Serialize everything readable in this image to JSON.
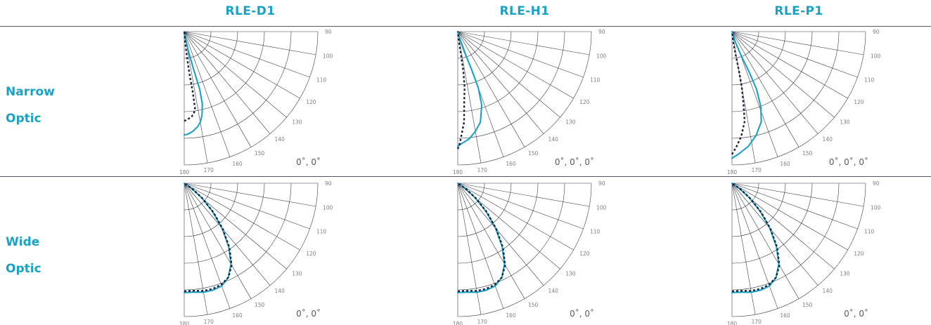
{
  "columns": [
    "RLE-D1",
    "RLE-H1",
    "RLE-P1"
  ],
  "rows": [
    {
      "line1": "Narrow",
      "line2": "Optic"
    },
    {
      "line1": "Wide",
      "line2": "Optic"
    }
  ],
  "colors": {
    "accent": "#1aa1c6",
    "dashed": "#1a1f3a",
    "grid": "#3a3d48"
  },
  "chart_data": [
    {
      "type": "polar",
      "row": "Narrow Optic",
      "column": "RLE-D1",
      "angle_labels": [
        "90",
        "100",
        "110",
        "120",
        "130",
        "140",
        "150",
        "160",
        "170",
        "180"
      ],
      "view_label": "0˚, 0˚",
      "series": [
        {
          "style": "solid",
          "points": [
            [
              180,
              0.775
            ],
            [
              178,
              0.77
            ],
            [
              175,
              0.75
            ],
            [
              172,
              0.72
            ],
            [
              170,
              0.69
            ],
            [
              168,
              0.64
            ],
            [
              166,
              0.56
            ],
            [
              165,
              0.45
            ],
            [
              166,
              0.3
            ],
            [
              168,
              0.15
            ],
            [
              170,
              0.05
            ],
            [
              172,
              0
            ]
          ]
        },
        {
          "style": "dashed",
          "points": [
            [
              180,
              0.67
            ],
            [
              178,
              0.66
            ],
            [
              175,
              0.64
            ],
            [
              173,
              0.61
            ],
            [
              172,
              0.58
            ],
            [
              172,
              0.45
            ],
            [
              173,
              0.32
            ],
            [
              174,
              0.18
            ],
            [
              175,
              0.08
            ],
            [
              176,
              0
            ]
          ]
        }
      ]
    },
    {
      "type": "polar",
      "row": "Narrow Optic",
      "column": "RLE-H1",
      "angle_labels": [
        "90",
        "100",
        "110",
        "120",
        "130",
        "140",
        "150",
        "160",
        "170",
        "180"
      ],
      "view_label": "0˚, 0˚, 0˚",
      "series": [
        {
          "style": "solid",
          "points": [
            [
              180,
              0.86
            ],
            [
              178,
              0.84
            ],
            [
              174,
              0.81
            ],
            [
              170,
              0.76
            ],
            [
              166,
              0.7
            ],
            [
              162,
              0.58
            ],
            [
              160,
              0.45
            ],
            [
              160,
              0.3
            ],
            [
              162,
              0.15
            ],
            [
              165,
              0.05
            ],
            [
              168,
              0
            ]
          ]
        },
        {
          "style": "dashed",
          "points": [
            [
              180,
              0.88
            ],
            [
              179,
              0.84
            ],
            [
              178,
              0.78
            ],
            [
              176,
              0.68
            ],
            [
              175,
              0.55
            ],
            [
              173,
              0.42
            ],
            [
              172,
              0.3
            ],
            [
              172,
              0.18
            ],
            [
              173,
              0.08
            ],
            [
              175,
              0
            ]
          ]
        }
      ]
    },
    {
      "type": "polar",
      "row": "Narrow Optic",
      "column": "RLE-P1",
      "angle_labels": [
        "90",
        "100",
        "110",
        "120",
        "130",
        "140",
        "150",
        "160",
        "170",
        "180"
      ],
      "view_label": "0˚, 0˚, 0˚",
      "series": [
        {
          "style": "solid",
          "points": [
            [
              180,
              0.95
            ],
            [
              177,
              0.92
            ],
            [
              172,
              0.87
            ],
            [
              167,
              0.8
            ],
            [
              162,
              0.71
            ],
            [
              159,
              0.6
            ],
            [
              157,
              0.47
            ],
            [
              157,
              0.33
            ],
            [
              159,
              0.2
            ],
            [
              162,
              0.09
            ],
            [
              166,
              0
            ]
          ]
        },
        {
          "style": "dashed",
          "points": [
            [
              180,
              0.92
            ],
            [
              178,
              0.87
            ],
            [
              175,
              0.79
            ],
            [
              172,
              0.68
            ],
            [
              171,
              0.55
            ],
            [
              170,
              0.42
            ],
            [
              170,
              0.3
            ],
            [
              171,
              0.18
            ],
            [
              173,
              0.08
            ],
            [
              175,
              0
            ]
          ]
        }
      ]
    },
    {
      "type": "polar",
      "row": "Wide Optic",
      "column": "RLE-D1",
      "angle_labels": [
        "90",
        "100",
        "110",
        "120",
        "130",
        "140",
        "150",
        "160",
        "170",
        "180"
      ],
      "view_label": "0˚, 0˚",
      "series": [
        {
          "style": "solid",
          "points": [
            [
              180,
              0.82
            ],
            [
              175,
              0.82
            ],
            [
              170,
              0.83
            ],
            [
              165,
              0.83
            ],
            [
              160,
              0.82
            ],
            [
              155,
              0.78
            ],
            [
              150,
              0.7
            ],
            [
              145,
              0.58
            ],
            [
              140,
              0.44
            ],
            [
              135,
              0.3
            ],
            [
              130,
              0.17
            ],
            [
              125,
              0.07
            ],
            [
              120,
              0
            ]
          ]
        },
        {
          "style": "dashed",
          "points": [
            [
              180,
              0.81
            ],
            [
              175,
              0.81
            ],
            [
              170,
              0.82
            ],
            [
              165,
              0.82
            ],
            [
              160,
              0.81
            ],
            [
              155,
              0.78
            ],
            [
              150,
              0.71
            ],
            [
              145,
              0.59
            ],
            [
              140,
              0.45
            ],
            [
              135,
              0.31
            ],
            [
              130,
              0.18
            ],
            [
              125,
              0.08
            ],
            [
              120,
              0
            ]
          ]
        }
      ]
    },
    {
      "type": "polar",
      "row": "Wide Optic",
      "column": "RLE-H1",
      "angle_labels": [
        "90",
        "100",
        "110",
        "120",
        "130",
        "140",
        "150",
        "160",
        "170",
        "180"
      ],
      "view_label": "0˚, 0˚",
      "series": [
        {
          "style": "solid",
          "points": [
            [
              180,
              0.82
            ],
            [
              175,
              0.82
            ],
            [
              170,
              0.83
            ],
            [
              165,
              0.83
            ],
            [
              160,
              0.82
            ],
            [
              155,
              0.78
            ],
            [
              150,
              0.7
            ],
            [
              145,
              0.58
            ],
            [
              140,
              0.44
            ],
            [
              135,
              0.3
            ],
            [
              130,
              0.17
            ],
            [
              125,
              0.07
            ],
            [
              120,
              0
            ]
          ]
        },
        {
          "style": "dashed",
          "points": [
            [
              180,
              0.81
            ],
            [
              175,
              0.81
            ],
            [
              170,
              0.82
            ],
            [
              165,
              0.82
            ],
            [
              160,
              0.81
            ],
            [
              155,
              0.78
            ],
            [
              150,
              0.71
            ],
            [
              145,
              0.59
            ],
            [
              140,
              0.45
            ],
            [
              135,
              0.31
            ],
            [
              130,
              0.18
            ],
            [
              125,
              0.08
            ],
            [
              120,
              0
            ]
          ]
        }
      ]
    },
    {
      "type": "polar",
      "row": "Wide Optic",
      "column": "RLE-P1",
      "angle_labels": [
        "90",
        "100",
        "110",
        "120",
        "130",
        "140",
        "150",
        "160",
        "170",
        "180"
      ],
      "view_label": "0˚, 0˚",
      "series": [
        {
          "style": "solid",
          "points": [
            [
              180,
              0.82
            ],
            [
              175,
              0.82
            ],
            [
              170,
              0.83
            ],
            [
              165,
              0.83
            ],
            [
              160,
              0.82
            ],
            [
              155,
              0.78
            ],
            [
              150,
              0.7
            ],
            [
              145,
              0.58
            ],
            [
              140,
              0.44
            ],
            [
              135,
              0.3
            ],
            [
              130,
              0.17
            ],
            [
              125,
              0.07
            ],
            [
              120,
              0
            ]
          ]
        },
        {
          "style": "dashed",
          "points": [
            [
              180,
              0.81
            ],
            [
              175,
              0.81
            ],
            [
              170,
              0.82
            ],
            [
              165,
              0.82
            ],
            [
              160,
              0.81
            ],
            [
              155,
              0.78
            ],
            [
              150,
              0.71
            ],
            [
              145,
              0.59
            ],
            [
              140,
              0.45
            ],
            [
              135,
              0.31
            ],
            [
              130,
              0.18
            ],
            [
              125,
              0.08
            ],
            [
              120,
              0
            ]
          ]
        }
      ]
    }
  ]
}
